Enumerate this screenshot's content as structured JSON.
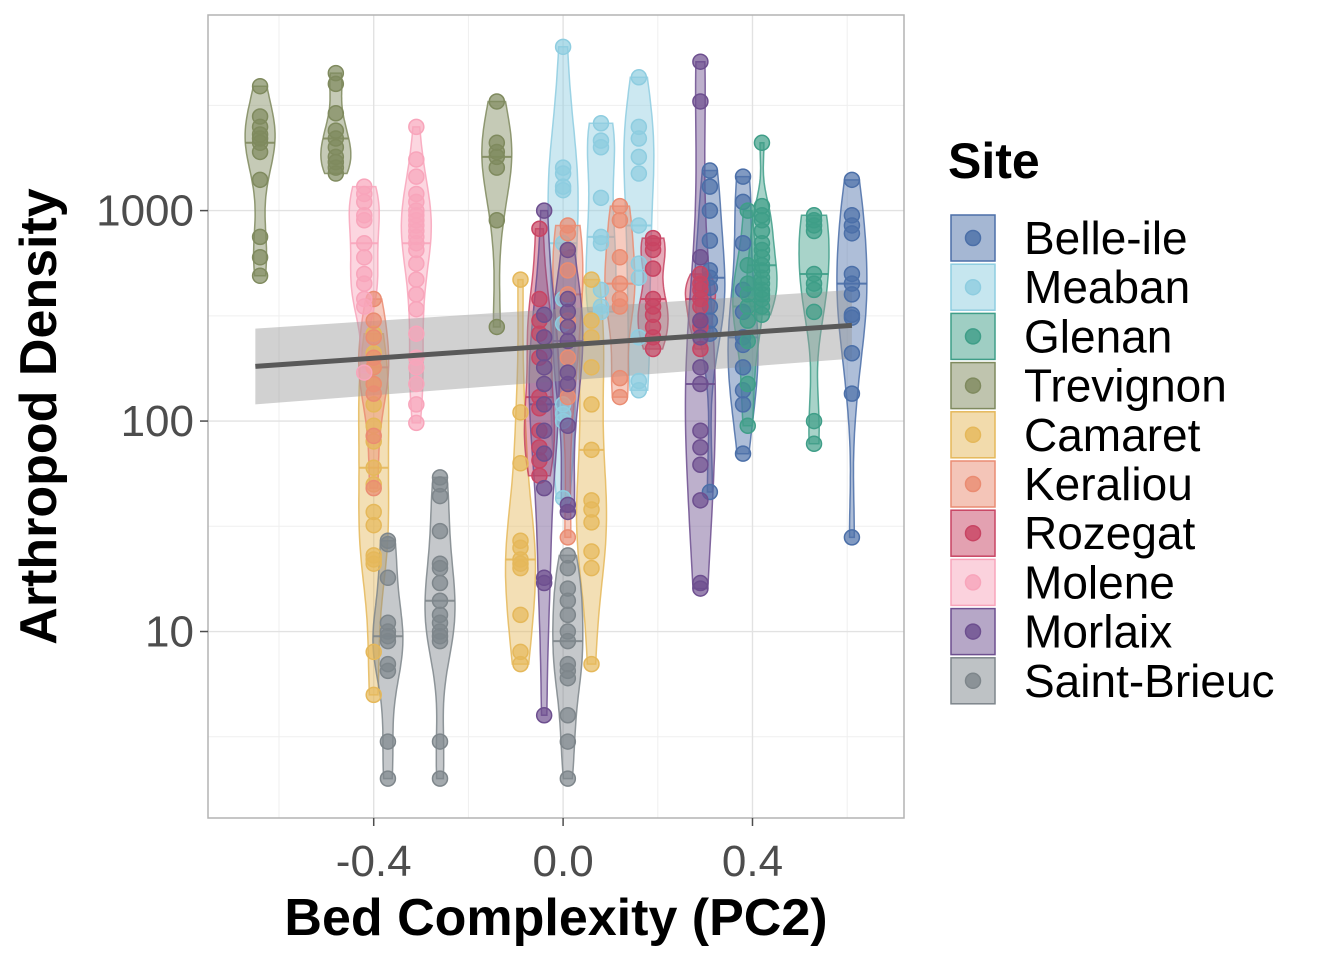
{
  "chart_data": {
    "type": "scatter",
    "xlabel": "Bed Complexity (PC2)",
    "ylabel": "Arthropod Density",
    "x_scale": "linear",
    "y_scale": "log10",
    "xlim": [
      -0.75,
      0.72
    ],
    "ylim": [
      1.3,
      8500
    ],
    "x_ticks": [
      -0.4,
      0.0,
      0.4
    ],
    "x_tick_labels": [
      "-0.4",
      "0.0",
      "0.4"
    ],
    "y_ticks": [
      10,
      100,
      1000
    ],
    "y_tick_labels": [
      "10",
      "100",
      "1000"
    ],
    "grid": true,
    "legend": {
      "title": "Site",
      "position": "right"
    },
    "trend_line": {
      "method": "linear fit on log scale",
      "x": [
        -0.65,
        0.61
      ],
      "y": [
        182,
        285
      ],
      "ci_lower": [
        120,
        198
      ],
      "ci_upper": [
        275,
        420
      ],
      "color": "#595959"
    },
    "series": [
      {
        "name": "Belle-ile",
        "color": "#4b6fa8",
        "x": 0.61,
        "values": [
          1400,
          950,
          850,
          780,
          500,
          450,
          400,
          320,
          310,
          210,
          135,
          28
        ]
      },
      {
        "name": "Belle-ile",
        "color": "#4b6fa8",
        "x": 0.31,
        "values": [
          1550,
          1300,
          1000,
          720,
          520,
          480,
          430,
          350,
          300,
          260,
          46
        ]
      },
      {
        "name": "Belle-ile",
        "color": "#4b6fa8",
        "x": 0.38,
        "values": [
          1450,
          1100,
          700,
          420,
          330,
          250,
          230,
          180,
          140,
          120,
          70
        ]
      },
      {
        "name": "Meaban",
        "color": "#8ecde0",
        "x": 0.0,
        "values": [
          6000,
          1600,
          1500,
          1300,
          1250,
          700,
          380,
          290,
          120,
          108,
          100,
          43
        ]
      },
      {
        "name": "Meaban",
        "color": "#8ecde0",
        "x": 0.08,
        "values": [
          2600,
          2150,
          2000,
          1150,
          750,
          700,
          420,
          350,
          330
        ]
      },
      {
        "name": "Meaban",
        "color": "#8ecde0",
        "x": 0.16,
        "values": [
          4300,
          2500,
          2200,
          1800,
          1500,
          850,
          560,
          480,
          250,
          155,
          140
        ]
      },
      {
        "name": "Glenan",
        "color": "#3f9e88",
        "x": 0.42,
        "values": [
          2100,
          1050,
          950,
          900,
          800,
          700,
          650,
          600,
          550,
          520,
          480,
          450,
          420,
          400,
          380,
          350,
          320
        ]
      },
      {
        "name": "Glenan",
        "color": "#3f9e88",
        "x": 0.53,
        "values": [
          950,
          900,
          850,
          800,
          500,
          450,
          420,
          330,
          100,
          78
        ]
      },
      {
        "name": "Glenan",
        "color": "#3f9e88",
        "x": 0.39,
        "values": [
          1000,
          550,
          450,
          400,
          350,
          300,
          240,
          150,
          95
        ]
      },
      {
        "name": "Trevignon",
        "color": "#7f8a5e",
        "x": -0.64,
        "values": [
          3900,
          2800,
          2500,
          2300,
          2200,
          2100,
          1900,
          1400,
          750,
          600,
          490
        ]
      },
      {
        "name": "Trevignon",
        "color": "#7f8a5e",
        "x": -0.48,
        "values": [
          4500,
          4000,
          2900,
          2400,
          2200,
          2000,
          1800,
          1700,
          1600,
          1500
        ]
      },
      {
        "name": "Trevignon",
        "color": "#7f8a5e",
        "x": -0.14,
        "values": [
          3300,
          2100,
          1900,
          1800,
          1600,
          900,
          280
        ]
      },
      {
        "name": "Camaret",
        "color": "#e5b85a",
        "x": -0.4,
        "values": [
          260,
          210,
          180,
          150,
          120,
          95,
          80,
          60,
          50,
          37,
          32,
          23,
          22,
          21,
          8,
          5
        ]
      },
      {
        "name": "Camaret",
        "color": "#e5b85a",
        "x": -0.09,
        "values": [
          470,
          110,
          63,
          27,
          25,
          22,
          21,
          20,
          12,
          8,
          7
        ]
      },
      {
        "name": "Camaret",
        "color": "#e5b85a",
        "x": 0.06,
        "values": [
          470,
          300,
          250,
          180,
          120,
          73,
          42,
          38,
          33,
          24,
          20,
          7
        ]
      },
      {
        "name": "Keraliou",
        "color": "#ea8c72",
        "x": -0.4,
        "values": [
          380,
          300,
          250,
          200,
          180,
          150,
          135,
          85,
          48
        ]
      },
      {
        "name": "Keraliou",
        "color": "#ea8c72",
        "x": 0.01,
        "values": [
          850,
          780,
          650,
          520,
          400,
          300,
          200,
          130,
          28
        ]
      },
      {
        "name": "Keraliou",
        "color": "#ea8c72",
        "x": 0.12,
        "values": [
          1050,
          900,
          600,
          450,
          380,
          350,
          160,
          130
        ]
      },
      {
        "name": "Rozegat",
        "color": "#c84463",
        "x": -0.05,
        "values": [
          820,
          380,
          300,
          260,
          200,
          130,
          115,
          90,
          75,
          65,
          55
        ]
      },
      {
        "name": "Rozegat",
        "color": "#c84463",
        "x": 0.19,
        "values": [
          740,
          700,
          650,
          530,
          380,
          350,
          320,
          280,
          250,
          220
        ]
      },
      {
        "name": "Rozegat",
        "color": "#c84463",
        "x": 0.29,
        "values": [
          500,
          450,
          420,
          380,
          350,
          300,
          280,
          220
        ]
      },
      {
        "name": "Molene",
        "color": "#f8a5bb",
        "x": -0.42,
        "values": [
          1300,
          1200,
          1100,
          950,
          900,
          700,
          600,
          500,
          450,
          380,
          350,
          170
        ]
      },
      {
        "name": "Molene",
        "color": "#f8a5bb",
        "x": -0.31,
        "values": [
          2500,
          1750,
          1450,
          1200,
          1100,
          1000,
          950,
          900,
          850,
          800,
          750,
          700,
          650,
          560,
          470,
          400,
          340,
          260,
          200,
          180,
          150,
          120,
          98
        ]
      },
      {
        "name": "Morlaix",
        "color": "#6d4f8f",
        "x": 0.29,
        "values": [
          5100,
          3300,
          600,
          300,
          250,
          180,
          150,
          90,
          75,
          62,
          42,
          17,
          16
        ]
      },
      {
        "name": "Morlaix",
        "color": "#6d4f8f",
        "x": -0.04,
        "values": [
          1000,
          320,
          250,
          210,
          180,
          150,
          120,
          90,
          70,
          48,
          18,
          17,
          4
        ]
      },
      {
        "name": "Morlaix",
        "color": "#6d4f8f",
        "x": 0.01,
        "values": [
          650,
          380,
          330,
          280,
          240,
          170,
          150,
          95,
          40,
          37
        ]
      },
      {
        "name": "Saint-Brieuc",
        "color": "#7e868b",
        "x": -0.37,
        "values": [
          27,
          26,
          18,
          11,
          10,
          9.5,
          9,
          7,
          6.5,
          3,
          2
        ]
      },
      {
        "name": "Saint-Brieuc",
        "color": "#7e868b",
        "x": -0.26,
        "values": [
          54,
          50,
          44,
          30,
          21,
          20,
          17,
          14,
          12,
          11,
          10,
          9.5,
          9,
          3,
          2
        ]
      },
      {
        "name": "Saint-Brieuc",
        "color": "#7e868b",
        "x": 0.01,
        "values": [
          23,
          20,
          16,
          14,
          12,
          10,
          9,
          7,
          6.5,
          6,
          4,
          3,
          2
        ]
      }
    ],
    "legend_entries": [
      {
        "name": "Belle-ile",
        "color": "#4b6fa8"
      },
      {
        "name": "Meaban",
        "color": "#8ecde0"
      },
      {
        "name": "Glenan",
        "color": "#3f9e88"
      },
      {
        "name": "Trevignon",
        "color": "#7f8a5e"
      },
      {
        "name": "Camaret",
        "color": "#e5b85a"
      },
      {
        "name": "Keraliou",
        "color": "#ea8c72"
      },
      {
        "name": "Rozegat",
        "color": "#c84463"
      },
      {
        "name": "Molene",
        "color": "#f8a5bb"
      },
      {
        "name": "Morlaix",
        "color": "#6d4f8f"
      },
      {
        "name": "Saint-Brieuc",
        "color": "#7e868b"
      }
    ]
  }
}
